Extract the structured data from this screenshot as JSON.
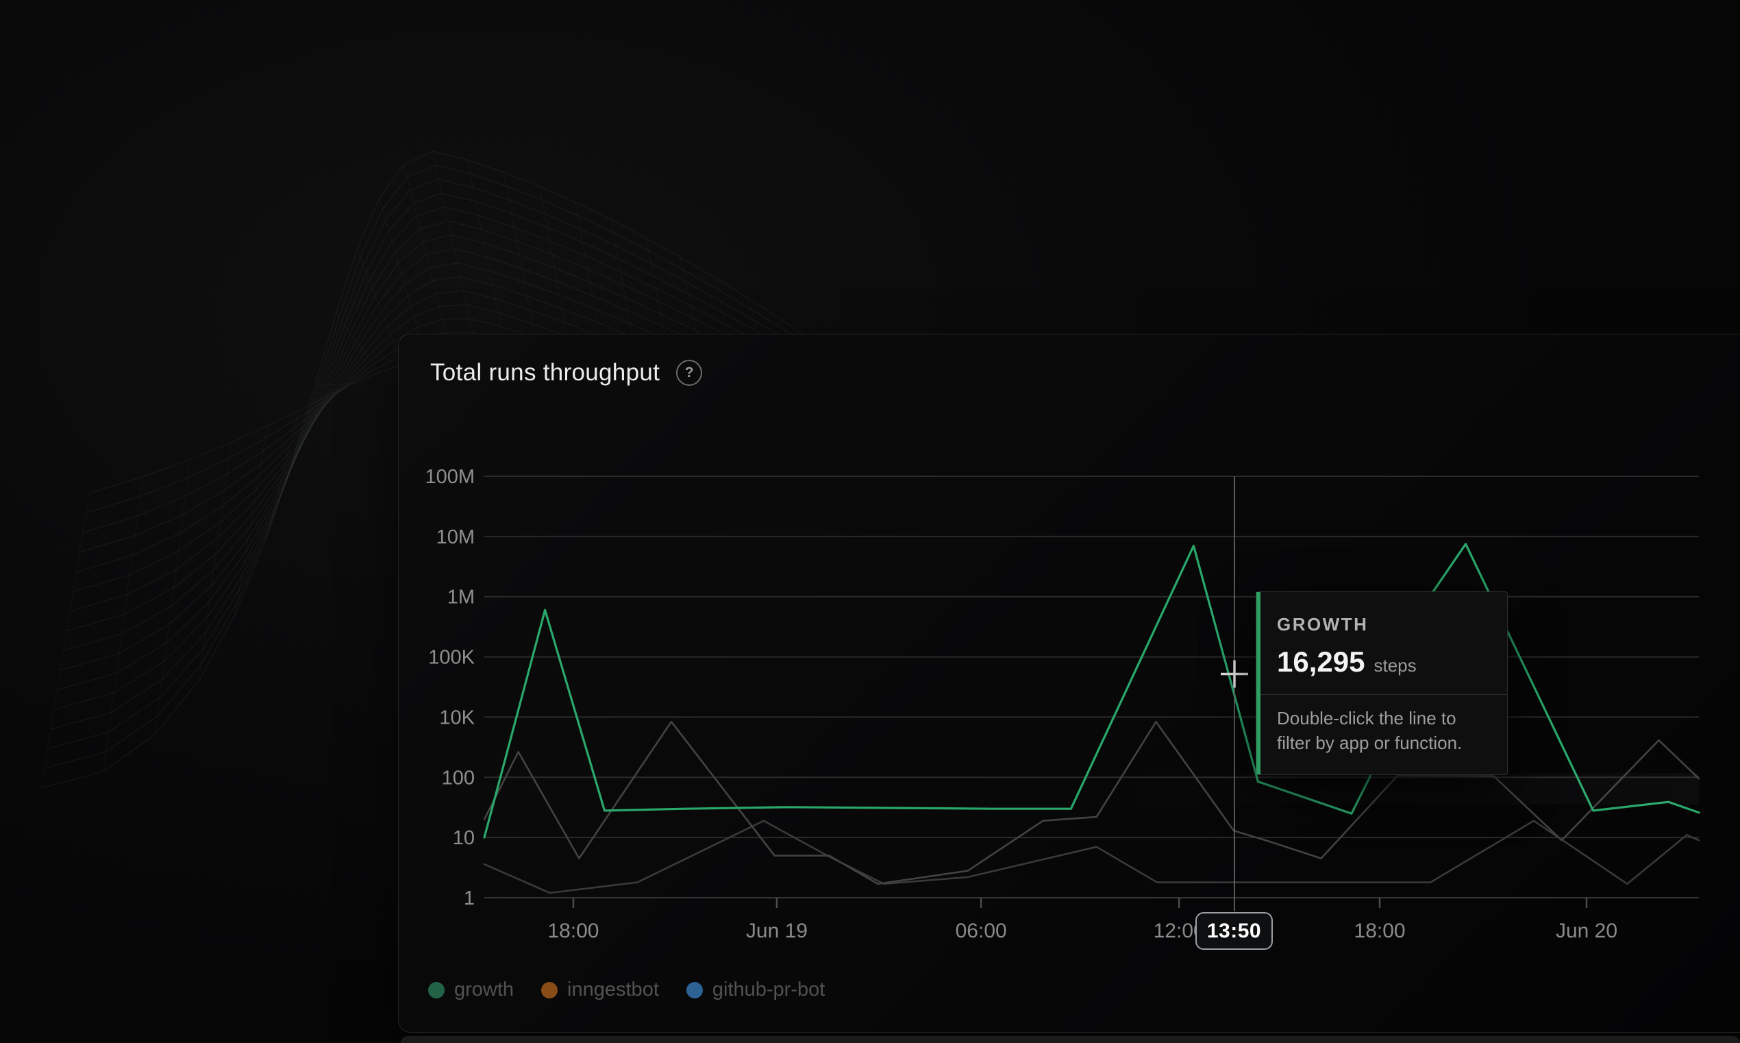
{
  "card": {
    "title": "Total runs throughput",
    "help_glyph": "?"
  },
  "tooltip": {
    "series_label": "GROWTH",
    "value": "16,295",
    "unit": "steps",
    "hint_line1": "Double-click the line to",
    "hint_line2": "filter by app or function.",
    "accent_color": "#2f9e63"
  },
  "crosshair": {
    "time_label": "13:50",
    "x01": 0.6176,
    "cursor_value": 52000
  },
  "chart_data": {
    "type": "line",
    "title": "Total runs throughput",
    "y_axis": {
      "scale": "log",
      "tick_labels": [
        "1",
        "10",
        "100",
        "10K",
        "100K",
        "1M",
        "10M",
        "100M"
      ],
      "tick_values": [
        1,
        10,
        100,
        10000,
        100000,
        1000000,
        10000000,
        100000000
      ],
      "ylim": [
        1,
        100000000
      ],
      "grid": true
    },
    "x_axis": {
      "tick_labels": [
        "18:00",
        "Jun 19",
        "06:00",
        "12:00",
        "18:00",
        "Jun 20"
      ],
      "tick_positions01": [
        0.0733,
        0.2408,
        0.409,
        0.572,
        0.7372,
        0.9075
      ]
    },
    "series": [
      {
        "name": "github-pr-bot",
        "line_color": "#3a3a3a",
        "unit": "steps",
        "points": [
          [
            0,
            3.6
          ],
          [
            0.054,
            1.2
          ],
          [
            0.126,
            1.8
          ],
          [
            0.23,
            19
          ],
          [
            0.284,
            4.8
          ],
          [
            0.329,
            1.7
          ],
          [
            0.398,
            2.2
          ],
          [
            0.504,
            7
          ],
          [
            0.554,
            1.8
          ],
          [
            0.779,
            1.8
          ],
          [
            0.864,
            19
          ],
          [
            0.941,
            1.7
          ],
          [
            0.99,
            11
          ],
          [
            1,
            9
          ]
        ]
      },
      {
        "name": "inngestbot",
        "line_color": "#434343",
        "unit": "steps",
        "points": [
          [
            0,
            20
          ],
          [
            0.028,
            700
          ],
          [
            0.078,
            4.5
          ],
          [
            0.154,
            7000
          ],
          [
            0.239,
            5
          ],
          [
            0.284,
            5
          ],
          [
            0.324,
            1.7
          ],
          [
            0.398,
            2.8
          ],
          [
            0.46,
            19
          ],
          [
            0.504,
            22
          ],
          [
            0.553,
            7000
          ],
          [
            0.617,
            13
          ],
          [
            0.647,
            8.5
          ],
          [
            0.689,
            4.5
          ],
          [
            0.752,
            115
          ],
          [
            0.831,
            110
          ],
          [
            0.887,
            9
          ],
          [
            0.967,
            1700
          ],
          [
            1,
            95
          ]
        ]
      },
      {
        "name": "growth",
        "line_color": "#2aa86b",
        "unit": "steps",
        "points": [
          [
            0,
            10
          ],
          [
            0.05,
            600000
          ],
          [
            0.099,
            28
          ],
          [
            0.165,
            30
          ],
          [
            0.25,
            32
          ],
          [
            0.335,
            31
          ],
          [
            0.419,
            30
          ],
          [
            0.483,
            30
          ],
          [
            0.584,
            7000000
          ],
          [
            0.637,
            85
          ],
          [
            0.714,
            25
          ],
          [
            0.729,
            100
          ],
          [
            0.781,
            1200000
          ],
          [
            0.808,
            7500000
          ],
          [
            0.913,
            28
          ],
          [
            0.975,
            39
          ],
          [
            1,
            26
          ]
        ]
      }
    ],
    "legend": [
      {
        "label": "growth",
        "dot_color": "#226246"
      },
      {
        "label": "inngestbot",
        "dot_color": "#8a4c16"
      },
      {
        "label": "github-pr-bot",
        "dot_color": "#2d6295"
      }
    ],
    "legend_position": "bottom-left"
  }
}
